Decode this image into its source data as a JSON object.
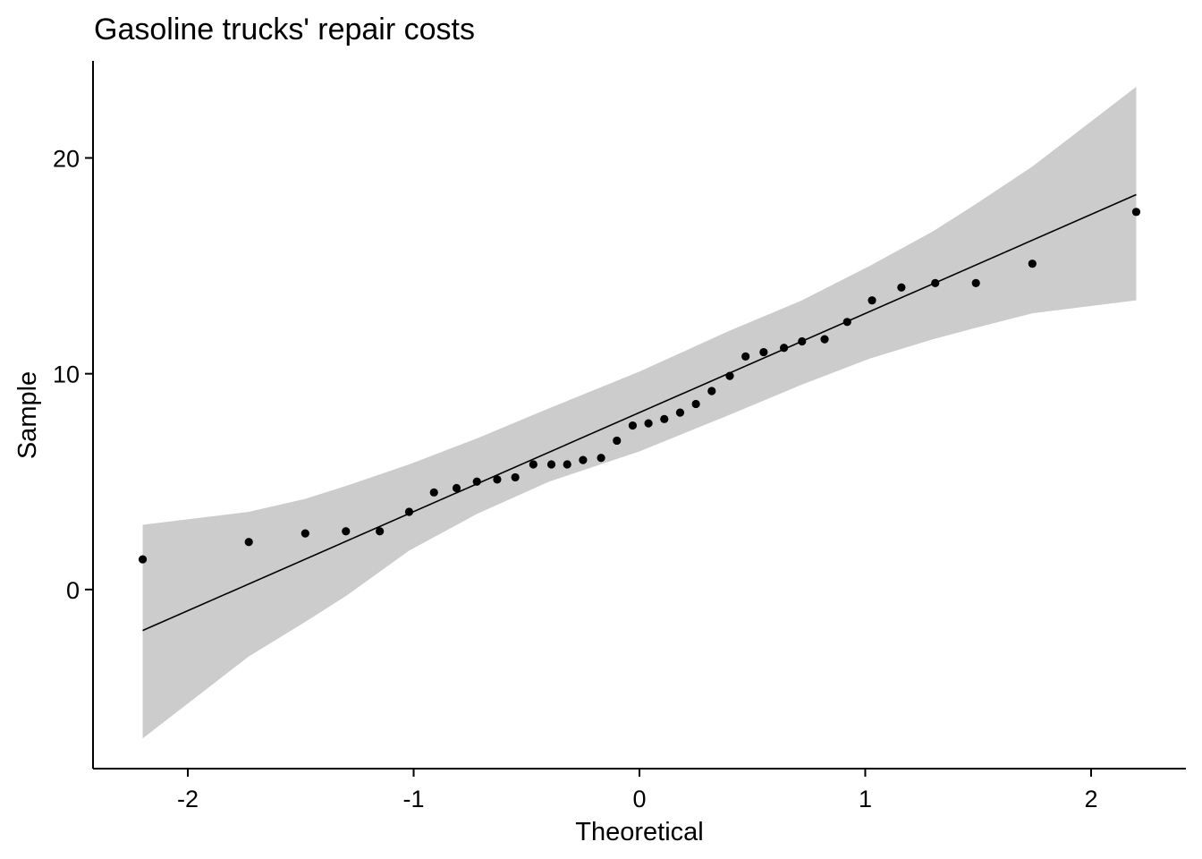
{
  "chart_data": {
    "type": "scatter",
    "title": "Gasoline trucks' repair costs",
    "xlabel": "Theoretical",
    "ylabel": "Sample",
    "xlim": [
      -2.42,
      2.42
    ],
    "ylim": [
      -8.3,
      24.5
    ],
    "x_ticks": [
      -2,
      -1,
      0,
      1,
      2
    ],
    "x_tick_labels": [
      "-2",
      "-1",
      "0",
      "1",
      "2"
    ],
    "y_ticks": [
      0,
      10,
      20
    ],
    "y_tick_labels": [
      "0",
      "10",
      "20"
    ],
    "grid": false,
    "legend": "none",
    "colors": {
      "points": "#000000",
      "line": "#000000",
      "band": "#cccccc"
    },
    "points": [
      [
        -2.2,
        1.4
      ],
      [
        -1.73,
        2.2
      ],
      [
        -1.48,
        2.6
      ],
      [
        -1.3,
        2.7
      ],
      [
        -1.15,
        2.7
      ],
      [
        -1.02,
        3.6
      ],
      [
        -0.91,
        4.5
      ],
      [
        -0.81,
        4.7
      ],
      [
        -0.72,
        5.0
      ],
      [
        -0.63,
        5.1
      ],
      [
        -0.55,
        5.2
      ],
      [
        -0.47,
        5.8
      ],
      [
        -0.39,
        5.8
      ],
      [
        -0.32,
        5.8
      ],
      [
        -0.25,
        6.0
      ],
      [
        -0.17,
        6.1
      ],
      [
        -0.1,
        6.9
      ],
      [
        -0.03,
        7.6
      ],
      [
        0.04,
        7.7
      ],
      [
        0.11,
        7.9
      ],
      [
        0.18,
        8.2
      ],
      [
        0.25,
        8.6
      ],
      [
        0.32,
        9.2
      ],
      [
        0.4,
        9.9
      ],
      [
        0.47,
        10.8
      ],
      [
        0.55,
        11.0
      ],
      [
        0.64,
        11.2
      ],
      [
        0.72,
        11.5
      ],
      [
        0.82,
        11.6
      ],
      [
        0.92,
        12.4
      ],
      [
        1.03,
        13.4
      ],
      [
        1.16,
        14.0
      ],
      [
        1.31,
        14.2
      ],
      [
        1.49,
        14.2
      ],
      [
        1.74,
        15.1
      ],
      [
        2.2,
        17.5
      ]
    ],
    "reference_line": {
      "x": [
        -2.2,
        2.2
      ],
      "y": [
        -1.9,
        18.3
      ]
    },
    "confidence_band": {
      "x": [
        -2.2,
        -1.73,
        -1.48,
        -1.3,
        -1.02,
        -0.72,
        -0.4,
        0.0,
        0.4,
        0.72,
        1.02,
        1.3,
        1.48,
        1.74,
        2.2
      ],
      "upper": [
        3.0,
        3.6,
        4.2,
        4.8,
        5.8,
        7.0,
        8.4,
        10.1,
        12.0,
        13.4,
        15.0,
        16.6,
        17.8,
        19.6,
        23.3
      ],
      "lower": [
        -6.9,
        -3.1,
        -1.5,
        -0.3,
        1.8,
        3.5,
        5.0,
        6.4,
        8.1,
        9.5,
        10.7,
        11.6,
        12.1,
        12.8,
        13.4
      ]
    }
  }
}
